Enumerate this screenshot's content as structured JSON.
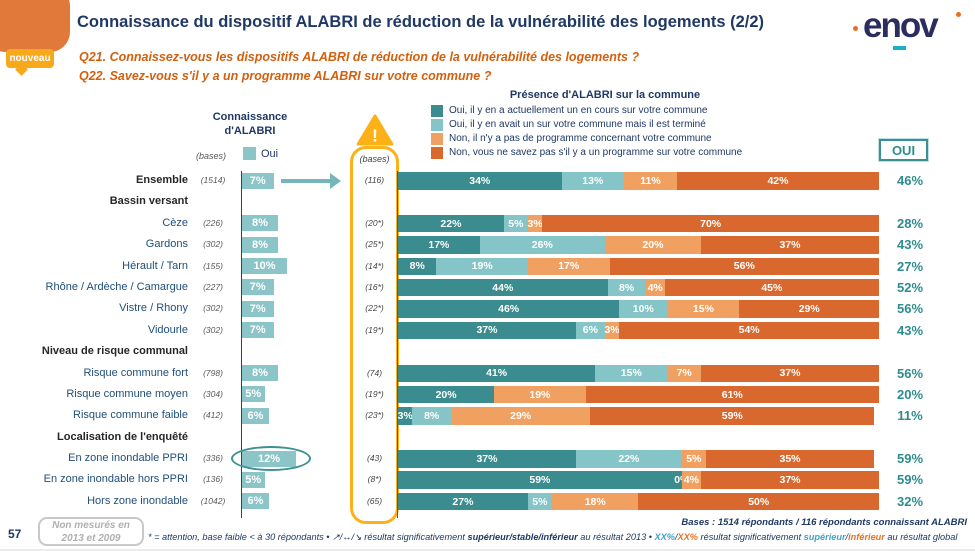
{
  "header": {
    "title": "Connaissance du dispositif ALABRI de réduction de la vulnérabilité des logements (2/2)",
    "badge": "nouveau",
    "q21": "Q21. Connaissez-vous les dispositifs ALABRI de réduction de la vulnérabilité des logements ?",
    "q22": "Q22. Savez-vous s'il y a un programme ALABRI sur votre commune ?",
    "logo_text": "enov"
  },
  "legend": {
    "title": "Présence d'ALABRI sur la commune",
    "items": [
      {
        "label": "Oui, il y en a actuellement un en cours sur votre commune",
        "color": "#3A8C8E"
      },
      {
        "label": "Oui, il y en avait un sur votre commune mais il est terminé",
        "color": "#85C5C7"
      },
      {
        "label": "Non, il n'y a pas de programme concernant votre commune",
        "color": "#F0A161"
      },
      {
        "label": "Non, vous ne savez pas s'il y a un programme sur votre commune",
        "color": "#D8682E"
      }
    ]
  },
  "columns": {
    "connaissance_line1": "Connaissance",
    "connaissance_line2": "d'ALABRI",
    "bases_label": "(bases)",
    "oui_label": "Oui",
    "bases2_label": "(bases)",
    "oui_box_label": "OUI",
    "oui_bar_color": "#8BC5C7",
    "warning_icon_color": "#FBB117"
  },
  "chart_data": {
    "type": "bar",
    "stacked": true,
    "orientation": "horizontal",
    "unit": "%",
    "xlim": [
      0,
      100
    ],
    "grid": false,
    "legend_position": "top",
    "series_names": [
      "Oui, il y en a actuellement un en cours sur votre commune",
      "Oui, il y en avait un sur votre commune mais il est terminé",
      "Non, il n'y a pas de programme concernant votre commune",
      "Non, vous ne savez pas s'il y a un programme sur votre commune"
    ],
    "rows": [
      {
        "kind": "data",
        "label": "Ensemble",
        "bold": true,
        "arrow": true,
        "base": "(1514)",
        "oui_pct": 7,
        "oui_label": "7%",
        "base2": "(116)",
        "values": [
          34,
          13,
          11,
          42
        ],
        "labels": [
          "34%",
          "13%",
          "11%",
          "42%"
        ],
        "oui_total_pct": 46,
        "oui_total_label": "46%"
      },
      {
        "kind": "section",
        "label": "Bassin versant"
      },
      {
        "kind": "data",
        "label": "Cèze",
        "base": "(226)",
        "oui_pct": 8,
        "oui_label": "8%",
        "base2": "(20*)",
        "values": [
          22,
          5,
          3,
          70
        ],
        "labels": [
          "22%",
          "5%",
          "3%",
          "70%"
        ],
        "oui_total_pct": 28,
        "oui_total_label": "28%"
      },
      {
        "kind": "data",
        "label": "Gardons",
        "base": "(302)",
        "oui_pct": 8,
        "oui_label": "8%",
        "base2": "(25*)",
        "values": [
          17,
          26,
          20,
          37
        ],
        "labels": [
          "17%",
          "26%",
          "20%",
          "37%"
        ],
        "oui_total_pct": 43,
        "oui_total_label": "43%"
      },
      {
        "kind": "data",
        "label": "Hérault / Tarn",
        "base": "(155)",
        "oui_pct": 10,
        "oui_label": "10%",
        "base2": "(14*)",
        "values": [
          8,
          19,
          17,
          56
        ],
        "labels": [
          "8%",
          "19%",
          "17%",
          "56%"
        ],
        "oui_total_pct": 27,
        "oui_total_label": "27%"
      },
      {
        "kind": "data",
        "label": "Rhône / Ardèche / Camargue",
        "base": "(227)",
        "oui_pct": 7,
        "oui_label": "7%",
        "base2": "(16*)",
        "values": [
          44,
          8,
          4,
          45
        ],
        "labels": [
          "44%",
          "8%",
          "4%",
          "45%"
        ],
        "oui_total_pct": 52,
        "oui_total_label": "52%"
      },
      {
        "kind": "data",
        "label": "Vistre / Rhony",
        "base": "(302)",
        "oui_pct": 7,
        "oui_label": "7%",
        "base2": "(22*)",
        "values": [
          46,
          10,
          15,
          29
        ],
        "labels": [
          "46%",
          "10%",
          "15%",
          "29%"
        ],
        "oui_total_pct": 56,
        "oui_total_label": "56%"
      },
      {
        "kind": "data",
        "label": "Vidourle",
        "base": "(302)",
        "oui_pct": 7,
        "oui_label": "7%",
        "base2": "(19*)",
        "values": [
          37,
          6,
          3,
          54
        ],
        "labels": [
          "37%",
          "6%",
          "3%",
          "54%"
        ],
        "oui_total_pct": 43,
        "oui_total_label": "43%"
      },
      {
        "kind": "section",
        "label": "Niveau de risque communal"
      },
      {
        "kind": "data",
        "label": "Risque commune fort",
        "base": "(798)",
        "oui_pct": 8,
        "oui_label": "8%",
        "base2": "(74)",
        "values": [
          41,
          15,
          7,
          37
        ],
        "labels": [
          "41%",
          "15%",
          "7%",
          "37%"
        ],
        "oui_total_pct": 56,
        "oui_total_label": "56%"
      },
      {
        "kind": "data",
        "label": "Risque commune moyen",
        "base": "(304)",
        "oui_pct": 5,
        "oui_label": "5%",
        "base2": "(19*)",
        "values": [
          20,
          0,
          19,
          61
        ],
        "labels": [
          "20%",
          "",
          "19%",
          "61%"
        ],
        "oui_total_pct": 20,
        "oui_total_label": "20%"
      },
      {
        "kind": "data",
        "label": "Risque commune faible",
        "base": "(412)",
        "oui_pct": 6,
        "oui_label": "6%",
        "base2": "(23*)",
        "values": [
          3,
          8,
          29,
          59
        ],
        "labels": [
          "3%",
          "8%",
          "29%",
          "59%"
        ],
        "oui_total_pct": 11,
        "oui_total_label": "11%"
      },
      {
        "kind": "section",
        "label": "Localisation de l'enquêté"
      },
      {
        "kind": "data",
        "label": "En zone inondable PPRI",
        "circled": true,
        "base": "(336)",
        "oui_pct": 12,
        "oui_label": "12%",
        "base2": "(43)",
        "values": [
          37,
          22,
          5,
          35
        ],
        "labels": [
          "37%",
          "22%",
          "5%",
          "35%"
        ],
        "oui_total_pct": 59,
        "oui_total_label": "59%"
      },
      {
        "kind": "data",
        "label": "En zone inondable hors PPRI",
        "base": "(136)",
        "oui_pct": 5,
        "oui_label": "5%",
        "base2": "(8*)",
        "values": [
          59,
          0,
          4,
          37
        ],
        "labels": [
          "59%",
          "0%",
          "4%",
          "37%"
        ],
        "oui_total_pct": 59,
        "oui_total_label": "59%"
      },
      {
        "kind": "data",
        "label": "Hors zone inondable",
        "base": "(1042)",
        "oui_pct": 6,
        "oui_label": "6%",
        "base2": "(65)",
        "values": [
          27,
          5,
          18,
          50
        ],
        "labels": [
          "27%",
          "5%",
          "18%",
          "50%"
        ],
        "oui_total_pct": 32,
        "oui_total_label": "32%"
      }
    ]
  },
  "footer": {
    "page_number": "57",
    "not_measured_note": "Non mesurés en 2013 et 2009",
    "bases_note": "Bases : 1514 répondants / 116 répondants connaissant ALABRI",
    "footnote": {
      "pre": "* = attention, base faible < à 30 répondants • ",
      "arrows": "↗/↔/↘",
      "mid1": " résultat significativement ",
      "bold1": "supérieur/stable/inférieur",
      "mid2": " au résultat 2013 • ",
      "xx_sup": "XX%",
      "slash1": "/",
      "xx_inf": "XX%",
      "mid3": " résultat significativement ",
      "sup_word": "supérieur",
      "slash2": "/",
      "inf_word": "inférieur",
      "end": " au résultat global"
    }
  }
}
